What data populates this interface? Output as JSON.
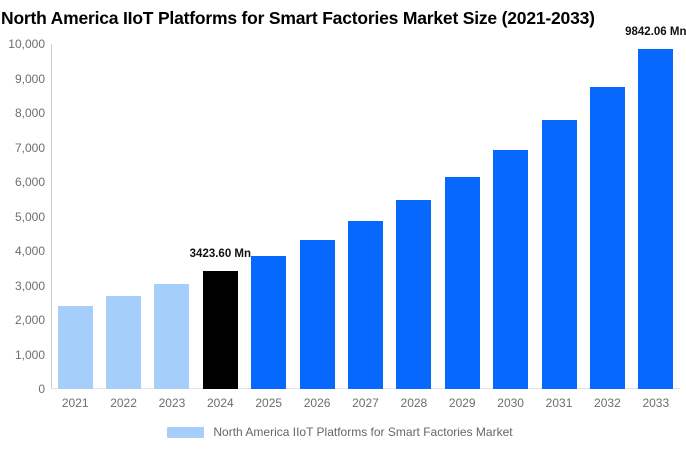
{
  "title": "North America IIoT Platforms for Smart Factories Market Size (2021-2033)",
  "legend": {
    "label": "North America IIoT Platforms for Smart Factories Market",
    "swatch_color": "#a5cefa"
  },
  "chart_data": {
    "type": "bar",
    "title": "North America IIoT Platforms for Smart Factories Market Size (2021-2033)",
    "categories": [
      "2021",
      "2022",
      "2023",
      "2024",
      "2025",
      "2026",
      "2027",
      "2028",
      "2029",
      "2030",
      "2031",
      "2032",
      "2033"
    ],
    "values": [
      2408,
      2708,
      3045,
      3423.6,
      3850,
      4329,
      4868,
      5474,
      6156,
      6923,
      7784,
      8754,
      9842.06
    ],
    "bar_colors": [
      "#a5cefa",
      "#a5cefa",
      "#a5cefa",
      "#000000",
      "#0768fd",
      "#0768fd",
      "#0768fd",
      "#0768fd",
      "#0768fd",
      "#0768fd",
      "#0768fd",
      "#0768fd",
      "#0768fd"
    ],
    "data_labels": [
      {
        "category": "2024",
        "text": "3423.60 Mn"
      },
      {
        "category": "2033",
        "text": "9842.06 Mn"
      }
    ],
    "xlabel": "",
    "ylabel": "",
    "ylim": [
      0,
      10000
    ],
    "y_tick_labels": [
      "0",
      "1,000",
      "2,000",
      "3,000",
      "4,000",
      "5,000",
      "6,000",
      "7,000",
      "8,000",
      "9,000",
      "10,000"
    ],
    "grid": false,
    "legend_position": "bottom",
    "colors": {
      "historical_bars": "#a5cefa",
      "base_year_bar": "#000000",
      "forecast_bars": "#0768fd",
      "axis_text": "#6e6e6e",
      "title_text": "#000000"
    }
  }
}
